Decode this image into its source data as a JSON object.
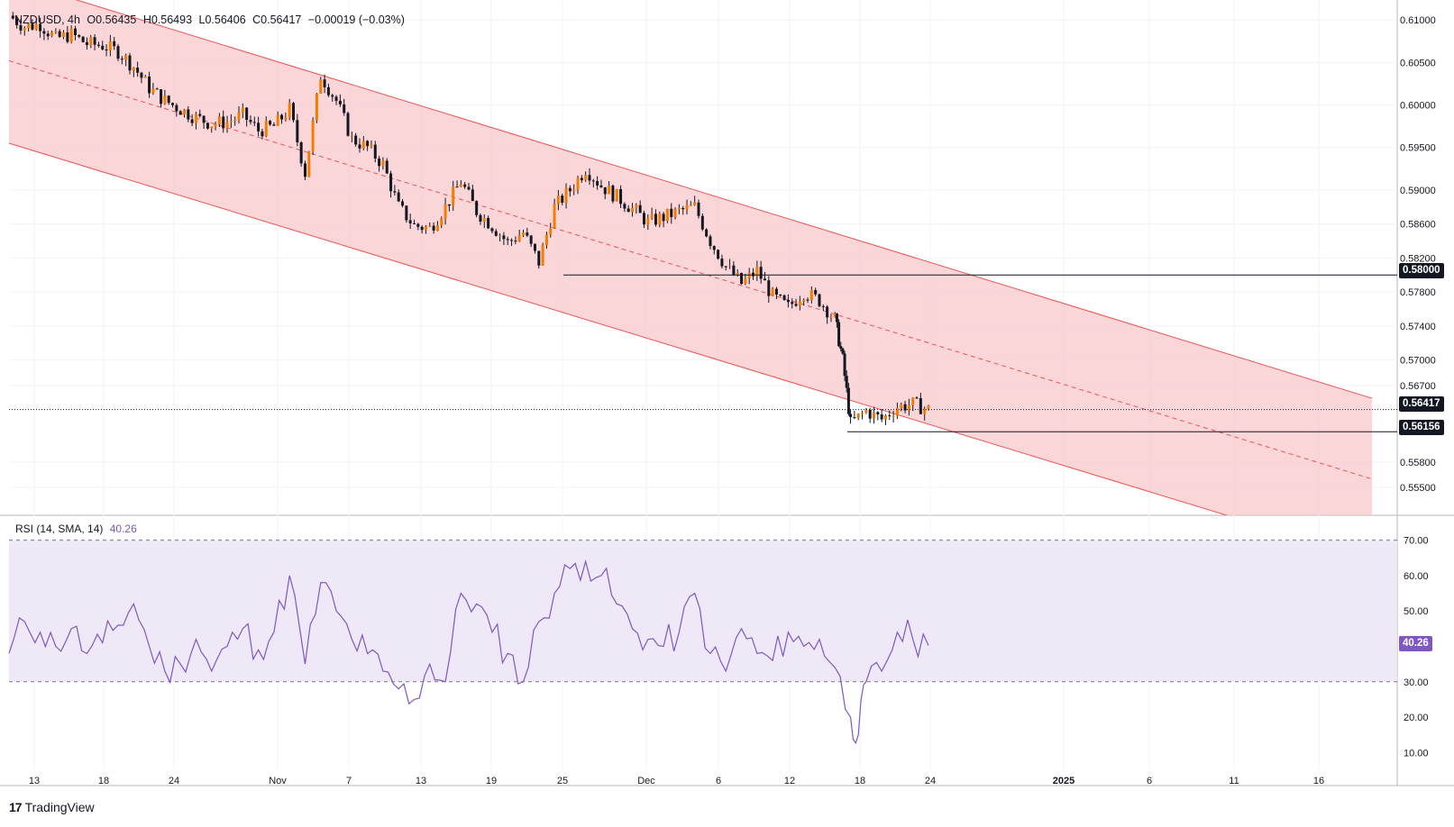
{
  "chart_data": {
    "type": "candlestick",
    "symbol_label": "NZDUSD, 4h",
    "ohlc_header": {
      "open": "O0.56435",
      "high": "H0.56493",
      "low": "L0.56406",
      "close": "C0.56417",
      "change": "−0.00019 (−0.03%)"
    },
    "price_axis": {
      "ticks": [
        "0.61000",
        "0.60500",
        "0.60000",
        "0.59500",
        "0.59000",
        "0.58600",
        "0.58200",
        "0.57800",
        "0.57400",
        "0.57000",
        "0.56700",
        "0.55800",
        "0.55500"
      ],
      "tick_values": [
        0.61,
        0.605,
        0.6,
        0.595,
        0.59,
        0.586,
        0.582,
        0.578,
        0.574,
        0.57,
        0.567,
        0.558,
        0.555
      ]
    },
    "time_axis": {
      "labels": [
        "13",
        "18",
        "24",
        "Nov",
        "7",
        "13",
        "19",
        "25",
        "Dec",
        "6",
        "12",
        "18",
        "24",
        "2025",
        "6",
        "11",
        "16"
      ],
      "bold": [
        "2025"
      ]
    },
    "price_series": {
      "description_points": [
        [
          0,
          0.6105
        ],
        [
          2,
          0.6092
        ],
        [
          4,
          0.6095
        ],
        [
          6,
          0.6078
        ],
        [
          8,
          0.6083
        ],
        [
          10,
          0.6072
        ],
        [
          12,
          0.607
        ],
        [
          14,
          0.6063
        ],
        [
          16,
          0.6045
        ],
        [
          18,
          0.602
        ],
        [
          20,
          0.6005
        ],
        [
          22,
          0.5995
        ],
        [
          24,
          0.5985
        ],
        [
          26,
          0.5978
        ],
        [
          28,
          0.598
        ],
        [
          30,
          0.5988
        ],
        [
          32,
          0.597
        ],
        [
          34,
          0.5975
        ],
        [
          36,
          0.5995
        ],
        [
          38,
          0.592
        ],
        [
          40,
          0.6035
        ],
        [
          42,
          0.6005
        ],
        [
          44,
          0.596
        ],
        [
          46,
          0.595
        ],
        [
          48,
          0.593
        ],
        [
          50,
          0.588
        ],
        [
          52,
          0.5858
        ],
        [
          54,
          0.5855
        ],
        [
          56,
          0.588
        ],
        [
          58,
          0.591
        ],
        [
          60,
          0.5875
        ],
        [
          62,
          0.5858
        ],
        [
          64,
          0.5838
        ],
        [
          66,
          0.585
        ],
        [
          68,
          0.5815
        ],
        [
          70,
          0.588
        ],
        [
          72,
          0.59
        ],
        [
          74,
          0.5925
        ],
        [
          76,
          0.5905
        ],
        [
          78,
          0.5892
        ],
        [
          80,
          0.5878
        ],
        [
          82,
          0.5862
        ],
        [
          84,
          0.5868
        ],
        [
          86,
          0.5875
        ],
        [
          88,
          0.588
        ],
        [
          90,
          0.584
        ],
        [
          92,
          0.581
        ],
        [
          94,
          0.579
        ],
        [
          96,
          0.5805
        ],
        [
          98,
          0.5775
        ],
        [
          100,
          0.5762
        ],
        [
          102,
          0.578
        ],
        [
          104,
          0.577
        ],
        [
          106,
          0.5748
        ],
        [
          107,
          0.57
        ],
        [
          108,
          0.5625
        ],
        [
          110,
          0.564
        ],
        [
          112,
          0.563
        ],
        [
          114,
          0.5645
        ],
        [
          116,
          0.5648
        ],
        [
          118,
          0.5642
        ]
      ]
    },
    "horizontal_lines": [
      {
        "label": "0.58000",
        "value": 0.58
      },
      {
        "label": "0.56156",
        "value": 0.56156
      }
    ],
    "last_price": {
      "label": "0.56417",
      "value": 0.56417
    },
    "channel": {
      "upper_start": 0.6148,
      "upper_end": 0.5655,
      "lower_start": 0.5955,
      "lower_end": 0.5465,
      "mid_start": 0.6052,
      "mid_end": 0.556
    },
    "rsi": {
      "label": "RSI (14, SMA, 14)",
      "value_label": "40.26",
      "value": 40.26,
      "levels": [
        70,
        30
      ],
      "ticks": [
        "70.00",
        "60.00",
        "50.00",
        "40.00",
        "30.00",
        "20.00",
        "10.00"
      ],
      "tick_values": [
        70,
        60,
        50,
        40,
        30,
        20,
        10
      ],
      "points": [
        [
          0,
          38
        ],
        [
          2,
          47
        ],
        [
          4,
          44
        ],
        [
          6,
          40
        ],
        [
          8,
          45
        ],
        [
          10,
          38
        ],
        [
          12,
          41
        ],
        [
          14,
          46
        ],
        [
          16,
          52
        ],
        [
          18,
          40
        ],
        [
          20,
          33
        ],
        [
          22,
          35
        ],
        [
          24,
          42
        ],
        [
          26,
          33
        ],
        [
          28,
          40
        ],
        [
          30,
          45
        ],
        [
          32,
          39
        ],
        [
          34,
          44
        ],
        [
          36,
          60
        ],
        [
          38,
          35
        ],
        [
          40,
          58
        ],
        [
          42,
          50
        ],
        [
          44,
          42
        ],
        [
          46,
          38
        ],
        [
          48,
          33
        ],
        [
          50,
          28
        ],
        [
          52,
          25
        ],
        [
          54,
          35
        ],
        [
          56,
          30
        ],
        [
          58,
          55
        ],
        [
          60,
          52
        ],
        [
          62,
          44
        ],
        [
          64,
          38
        ],
        [
          66,
          30
        ],
        [
          68,
          47
        ],
        [
          70,
          55
        ],
        [
          72,
          62
        ],
        [
          74,
          64
        ],
        [
          76,
          60
        ],
        [
          78,
          52
        ],
        [
          80,
          45
        ],
        [
          82,
          42
        ],
        [
          84,
          40
        ],
        [
          86,
          44
        ],
        [
          88,
          55
        ],
        [
          90,
          38
        ],
        [
          92,
          33
        ],
        [
          94,
          45
        ],
        [
          96,
          38
        ],
        [
          98,
          36
        ],
        [
          100,
          44
        ],
        [
          102,
          40
        ],
        [
          104,
          42
        ],
        [
          106,
          34
        ],
        [
          108,
          20
        ],
        [
          109,
          15
        ],
        [
          110,
          30
        ],
        [
          112,
          33
        ],
        [
          114,
          44
        ],
        [
          116,
          42
        ],
        [
          118,
          40.26
        ]
      ]
    },
    "colors": {
      "up_candle": "#f57c00",
      "down_candle": "#131722",
      "channel_fill": "#f8c8cc",
      "channel_line": "#ef5350",
      "rsi_line": "#7e57c2",
      "rsi_band": "#ede7f6",
      "last_price_bg": "#131722"
    }
  },
  "branding": {
    "name": "TradingView",
    "logo_icon": "tradingview-logo-icon"
  }
}
